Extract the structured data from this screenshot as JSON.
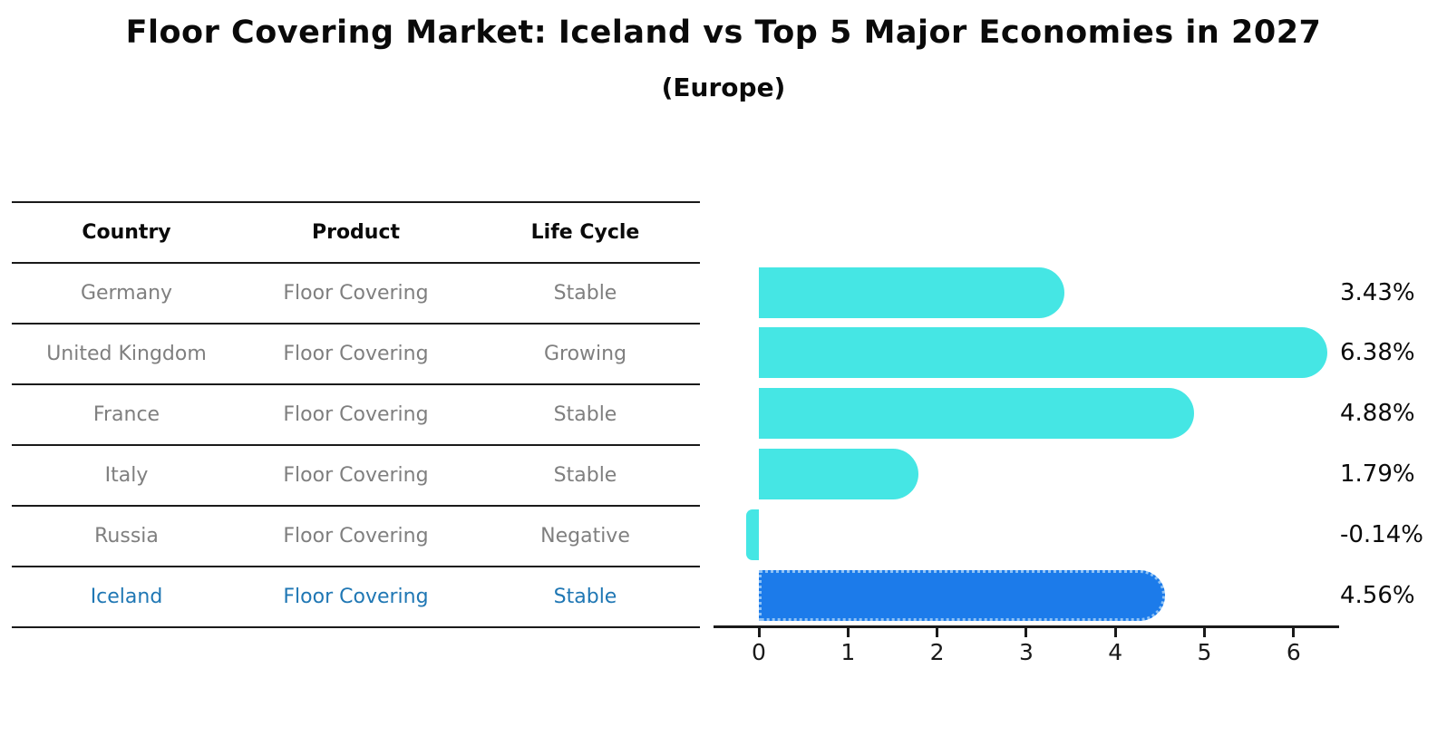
{
  "title": "Floor Covering Market: Iceland vs Top 5 Major Economies in 2027",
  "subtitle": "(Europe)",
  "table": {
    "headers": [
      "Country",
      "Product",
      "Life Cycle"
    ],
    "rows": [
      {
        "country": "Germany",
        "product": "Floor Covering",
        "life_cycle": "Stable",
        "highlight": false
      },
      {
        "country": "United Kingdom",
        "product": "Floor Covering",
        "life_cycle": "Growing",
        "highlight": false
      },
      {
        "country": "France",
        "product": "Floor Covering",
        "life_cycle": "Stable",
        "highlight": false
      },
      {
        "country": "Italy",
        "product": "Floor Covering",
        "life_cycle": "Stable",
        "highlight": false
      },
      {
        "country": "Russia",
        "product": "Floor Covering",
        "life_cycle": "Negative",
        "highlight": false
      },
      {
        "country": "Iceland",
        "product": "Floor Covering",
        "life_cycle": "Stable",
        "highlight": true
      }
    ]
  },
  "chart_data": {
    "type": "bar",
    "orientation": "horizontal",
    "title": "Floor Covering Market: Iceland vs Top 5 Major Economies in 2027 (Europe)",
    "categories": [
      "Germany",
      "United Kingdom",
      "France",
      "Italy",
      "Russia",
      "Iceland"
    ],
    "values": [
      3.43,
      6.38,
      4.88,
      1.79,
      -0.14,
      4.56
    ],
    "value_labels": [
      "3.43%",
      "6.38%",
      "4.88%",
      "1.79%",
      "-0.14%",
      "4.56%"
    ],
    "x_ticks": [
      0,
      1,
      2,
      3,
      4,
      5,
      6
    ],
    "xlim": [
      -0.5,
      6.5
    ],
    "grid": false,
    "legend": "none",
    "bar_color": "#45e6e4",
    "highlight_color": "#1c7bea",
    "highlight_index": 5
  },
  "colors": {
    "table_text_gray": "#7f7f7f",
    "highlight_text_blue": "#1f77b4",
    "axis_black": "#1a1a1a"
  }
}
